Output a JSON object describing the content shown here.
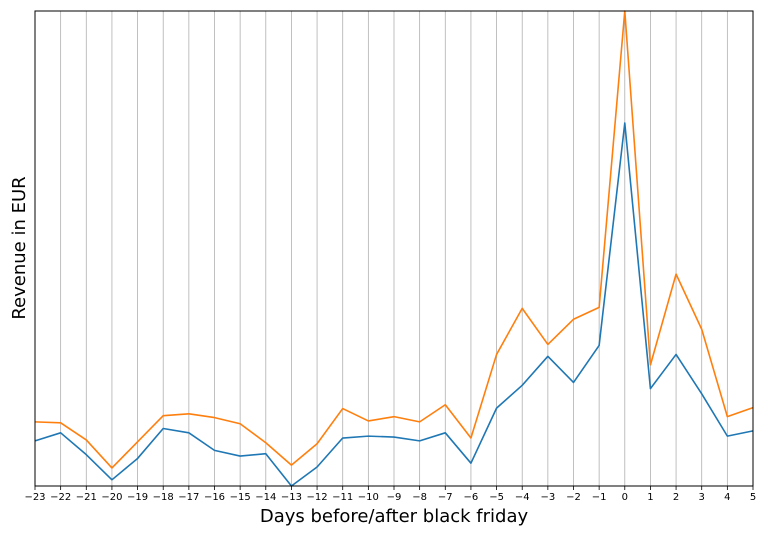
{
  "chart_data": {
    "type": "line",
    "title": "",
    "xlabel": "Days before/after black friday",
    "ylabel": "Revenue in EUR",
    "x": [
      -23,
      -22,
      -21,
      -20,
      -19,
      -18,
      -17,
      -16,
      -15,
      -14,
      -13,
      -12,
      -11,
      -10,
      -9,
      -8,
      -7,
      -6,
      -5,
      -4,
      -3,
      -2,
      -1,
      0,
      1,
      2,
      3,
      4,
      5
    ],
    "tick_labels": [
      "−23",
      "−22",
      "−21",
      "−20",
      "−19",
      "−18",
      "−17",
      "−16",
      "−15",
      "−14",
      "−13",
      "−12",
      "−11",
      "−10",
      "−9",
      "−8",
      "−7",
      "−6",
      "−5",
      "−4",
      "−3",
      "−2",
      "−1",
      "0",
      "1",
      "2",
      "3",
      "4",
      "5"
    ],
    "xlim": [
      -23,
      5
    ],
    "ylim": [
      0,
      100
    ],
    "y_ticks_shown": false,
    "grid": {
      "x": true,
      "y": false
    },
    "legend": "none",
    "series": [
      {
        "color": "#1f77b4",
        "values": [
          9.5,
          11.2,
          6.6,
          1.3,
          5.8,
          12.1,
          11.2,
          7.5,
          6.3,
          6.8,
          0.0,
          4.0,
          10.1,
          10.5,
          10.3,
          9.5,
          11.2,
          4.8,
          16.4,
          21.2,
          27.3,
          21.8,
          29.6,
          76.4,
          20.5,
          27.7,
          19.4,
          10.5,
          11.6
        ]
      },
      {
        "color": "#ff7f0e",
        "values": [
          13.5,
          13.3,
          9.7,
          3.8,
          9.3,
          14.8,
          15.2,
          14.4,
          13.1,
          9.1,
          4.4,
          8.9,
          16.3,
          13.7,
          14.6,
          13.5,
          17.1,
          10.1,
          27.7,
          37.4,
          29.8,
          35.1,
          37.6,
          100.0,
          25.5,
          44.6,
          33.0,
          14.6,
          16.5
        ]
      }
    ]
  }
}
